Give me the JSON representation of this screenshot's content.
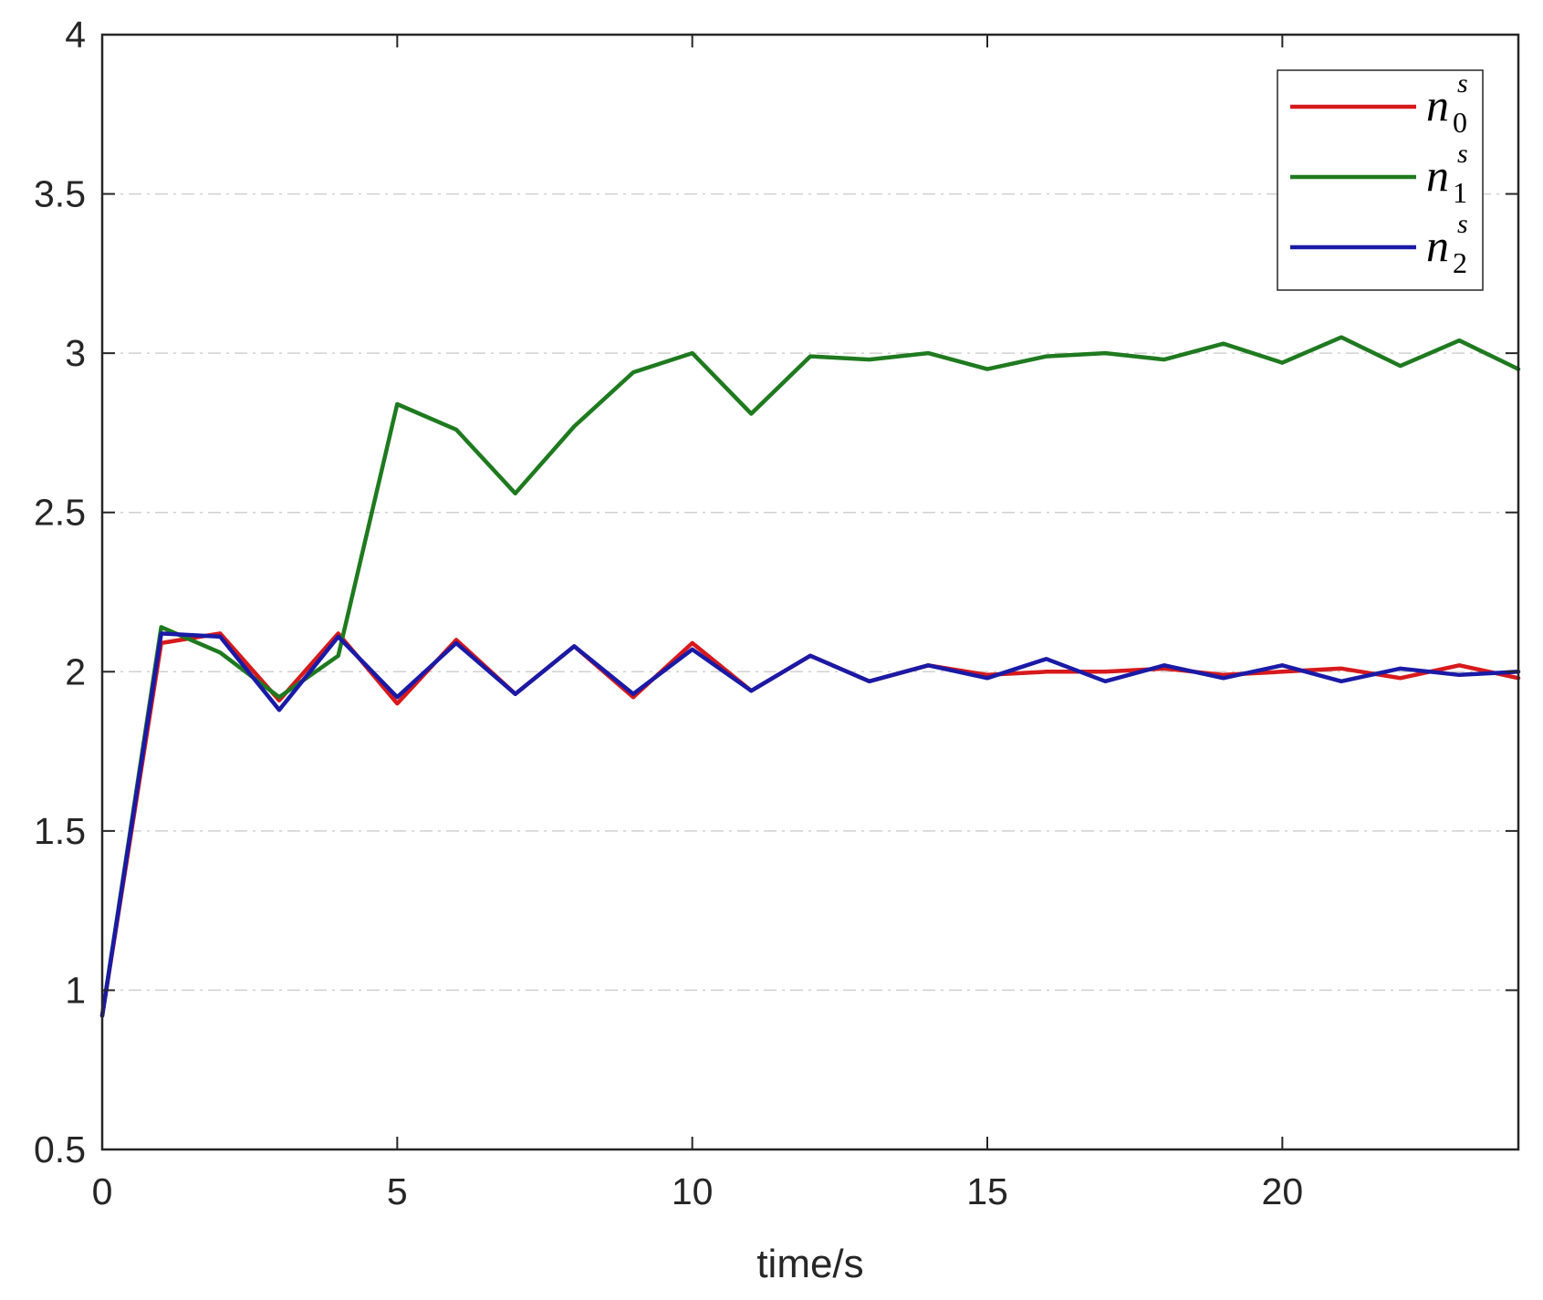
{
  "chart_data": {
    "type": "line",
    "title": "",
    "xlabel": "time/s",
    "ylabel": "",
    "xlim": [
      0,
      24
    ],
    "ylim": [
      0.5,
      4
    ],
    "xticks": [
      0,
      5,
      10,
      15,
      20
    ],
    "xtick_labels": [
      "0",
      "5",
      "10",
      "15",
      "20"
    ],
    "yticks": [
      0.5,
      1,
      1.5,
      2,
      2.5,
      3,
      3.5,
      4
    ],
    "ytick_labels": [
      "0.5",
      "1",
      "1.5",
      "2",
      "2.5",
      "3",
      "3.5",
      "4"
    ],
    "grid": "horizontal dash-dot",
    "legend_position": "top-right",
    "x": [
      0,
      1,
      2,
      3,
      4,
      5,
      6,
      7,
      8,
      9,
      10,
      11,
      12,
      13,
      14,
      15,
      16,
      17,
      18,
      19,
      20,
      21,
      22,
      23,
      24
    ],
    "series": [
      {
        "name": "n",
        "subscript": "0",
        "superscript": "s",
        "color": "#d7191c",
        "values": [
          0.92,
          2.09,
          2.12,
          1.91,
          2.12,
          1.9,
          2.1,
          1.93,
          2.08,
          1.92,
          2.09,
          1.94,
          2.05,
          1.97,
          2.02,
          1.99,
          2.0,
          2.0,
          2.01,
          1.99,
          2.0,
          2.01,
          1.98,
          2.02,
          1.98
        ]
      },
      {
        "name": "n",
        "subscript": "1",
        "superscript": "s",
        "color": "#1f7a1f",
        "values": [
          0.92,
          2.14,
          2.06,
          1.92,
          2.05,
          2.84,
          2.76,
          2.56,
          2.77,
          2.94,
          3.0,
          2.81,
          2.99,
          2.98,
          3.0,
          2.95,
          2.99,
          3.0,
          2.98,
          3.03,
          2.97,
          3.05,
          2.96,
          3.04,
          2.95
        ]
      },
      {
        "name": "n",
        "subscript": "2",
        "superscript": "s",
        "color": "#1a1aa6",
        "values": [
          0.92,
          2.12,
          2.11,
          1.88,
          2.11,
          1.92,
          2.09,
          1.93,
          2.08,
          1.93,
          2.07,
          1.94,
          2.05,
          1.97,
          2.02,
          1.98,
          2.04,
          1.97,
          2.02,
          1.98,
          2.02,
          1.97,
          2.01,
          1.99,
          2.0
        ]
      }
    ]
  }
}
